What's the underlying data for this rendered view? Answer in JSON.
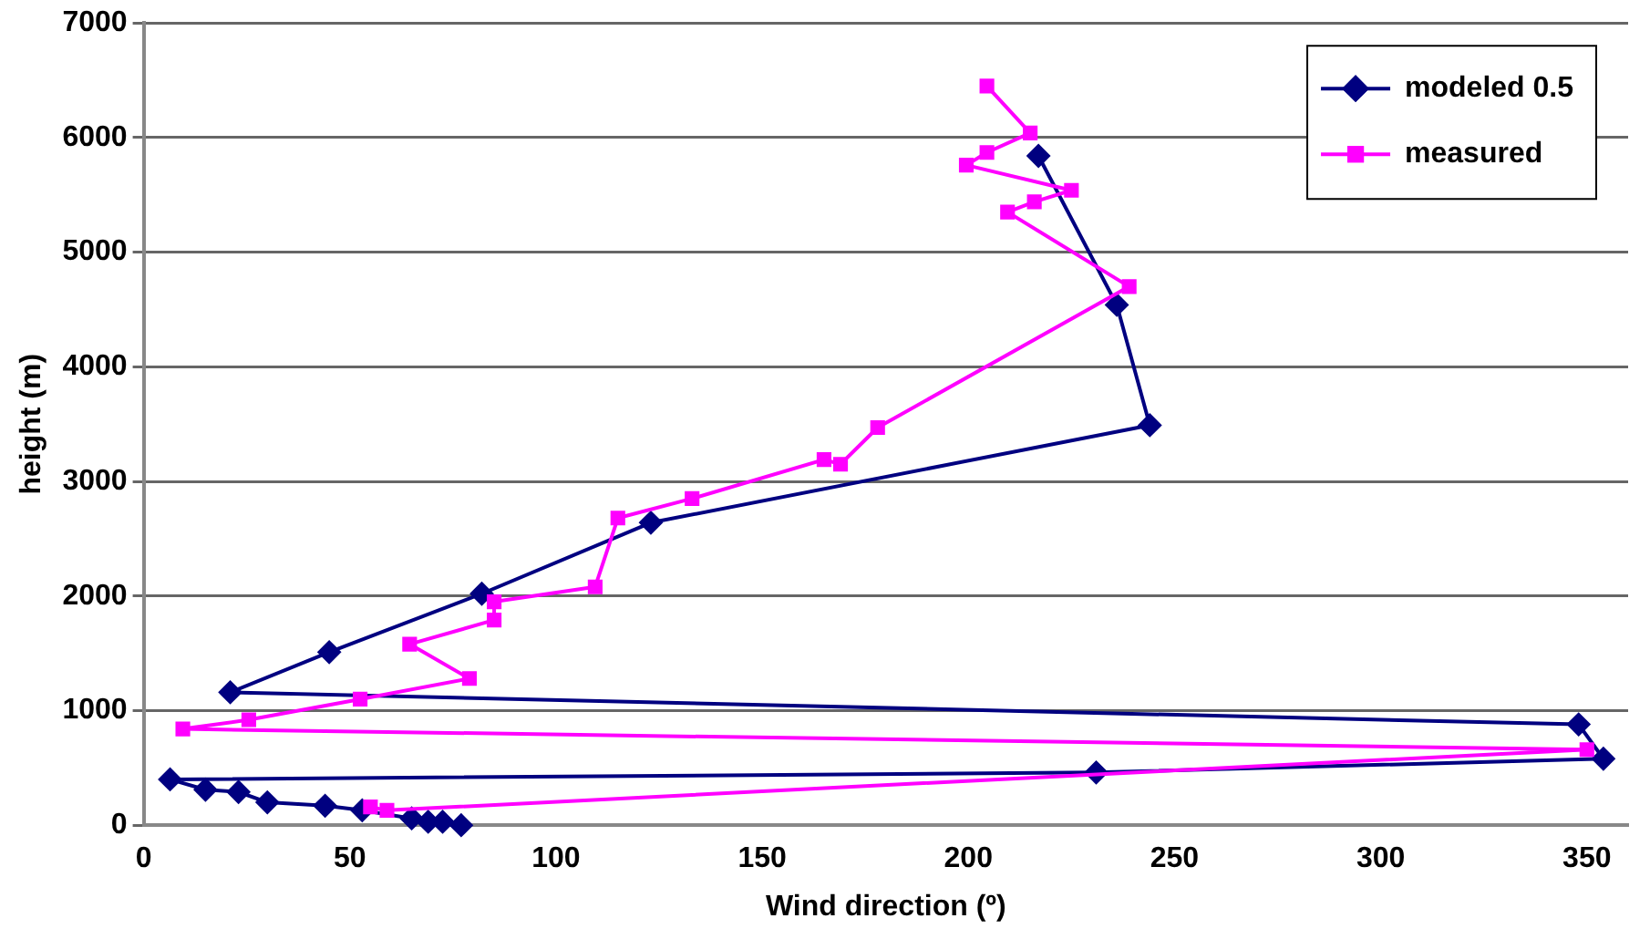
{
  "chart_data": {
    "type": "line",
    "xlabel": "Wind direction (º)",
    "ylabel": "height (m)",
    "xlim": [
      0,
      360
    ],
    "xticks": [
      0,
      50,
      100,
      150,
      200,
      250,
      300,
      350
    ],
    "ylim": [
      0,
      7000
    ],
    "yticks": [
      0,
      1000,
      2000,
      3000,
      4000,
      5000,
      6000,
      7000
    ],
    "grid": "y",
    "legend": "top right",
    "line_style": "solid",
    "series": [
      {
        "name": "modeled 0.5",
        "color": "#000080",
        "marker": "diamond",
        "x": [
          217,
          236,
          244,
          123,
          82,
          45,
          21,
          348,
          354,
          231,
          6.4,
          15,
          23,
          30,
          44,
          53,
          65,
          69,
          72.5,
          77
        ],
        "values": [
          5840,
          4540,
          3490,
          2640,
          2020,
          1510,
          1160,
          880,
          580,
          460,
          400,
          310,
          290,
          200,
          170,
          130,
          60,
          30,
          30,
          0
        ]
      },
      {
        "name": "measured",
        "color": "#ff00ff",
        "marker": "square",
        "x": [
          204.5,
          215,
          204.5,
          199.5,
          225,
          216,
          209.5,
          239,
          178,
          169,
          165,
          133,
          115,
          109.5,
          85,
          85,
          64.5,
          79,
          52.5,
          25.5,
          9.5,
          350,
          59,
          55
        ],
        "values": [
          6450,
          6040,
          5870,
          5760,
          5540,
          5440,
          5350,
          4700,
          3470,
          3150,
          3190,
          2850,
          2680,
          2080,
          1950,
          1790,
          1580,
          1280,
          1100,
          920,
          840,
          660,
          130,
          160
        ]
      }
    ]
  }
}
